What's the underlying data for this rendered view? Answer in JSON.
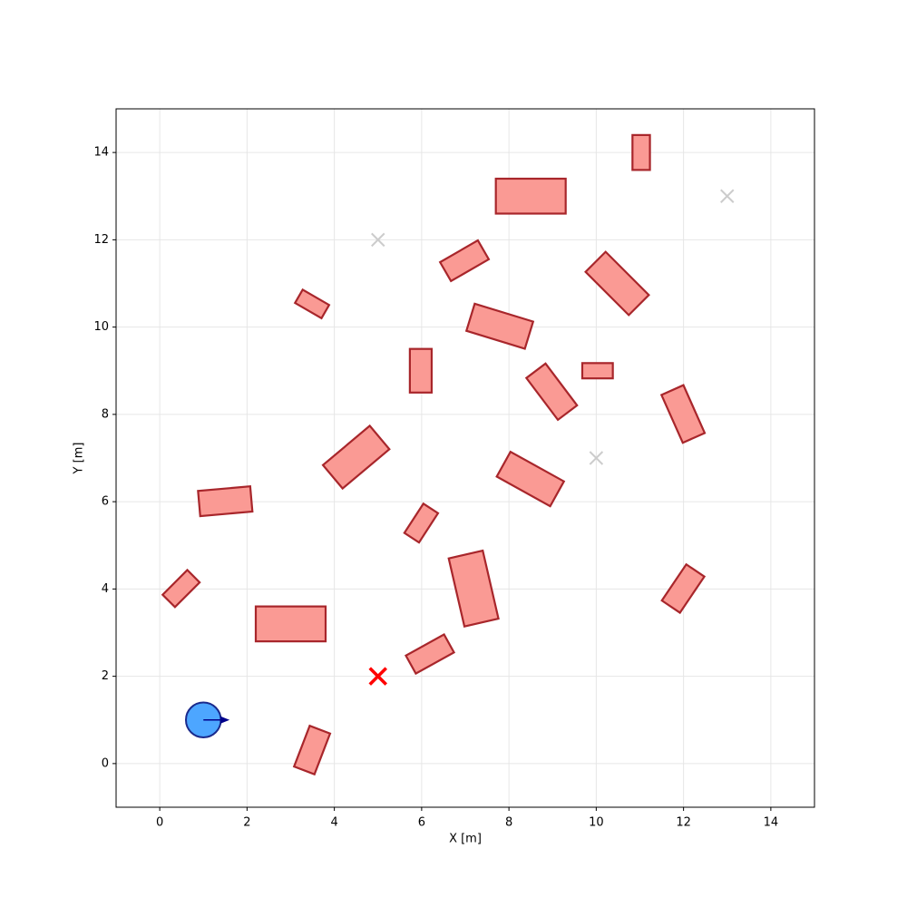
{
  "chart_data": {
    "type": "scatter",
    "xlabel": "X [m]",
    "ylabel": "Y [m]",
    "xlim": [
      -1,
      15
    ],
    "ylim": [
      -1,
      15
    ],
    "xticks": [
      0,
      2,
      4,
      6,
      8,
      10,
      12,
      14
    ],
    "yticks": [
      0,
      2,
      4,
      6,
      8,
      10,
      12,
      14
    ],
    "grid": true,
    "obstacles": {
      "color": "#fa9a94",
      "edgecolor": "#a8262b",
      "items": [
        {
          "x": 11.03,
          "y": 14.0,
          "width": 0.4,
          "height": 0.8,
          "angle": 0
        },
        {
          "x": 8.5,
          "y": 13.0,
          "width": 1.6,
          "height": 0.8,
          "angle": 0
        },
        {
          "x": 3.0,
          "y": 3.2,
          "width": 1.6,
          "height": 0.8,
          "angle": 0
        },
        {
          "x": 5.98,
          "y": 9.0,
          "width": 0.5,
          "height": 1.0,
          "angle": 0
        },
        {
          "x": 10.03,
          "y": 9.0,
          "width": 0.7,
          "height": 0.35,
          "angle": 0
        },
        {
          "x": 6.98,
          "y": 11.52,
          "width": 1.0,
          "height": 0.5,
          "angle": 30
        },
        {
          "x": 3.49,
          "y": 10.53,
          "width": 0.7,
          "height": 0.35,
          "angle": -30
        },
        {
          "x": 10.48,
          "y": 11.0,
          "width": 1.4,
          "height": 0.65,
          "angle": -45
        },
        {
          "x": 7.79,
          "y": 10.02,
          "width": 1.4,
          "height": 0.65,
          "angle": -17
        },
        {
          "x": 8.98,
          "y": 8.52,
          "width": 1.2,
          "height": 0.55,
          "angle": -53
        },
        {
          "x": 11.99,
          "y": 8.01,
          "width": 1.2,
          "height": 0.55,
          "angle": -66
        },
        {
          "x": 4.5,
          "y": 7.02,
          "width": 1.4,
          "height": 0.7,
          "angle": 40
        },
        {
          "x": 8.49,
          "y": 6.52,
          "width": 1.4,
          "height": 0.65,
          "angle": -29
        },
        {
          "x": 1.5,
          "y": 6.01,
          "width": 1.2,
          "height": 0.58,
          "angle": 5
        },
        {
          "x": 5.99,
          "y": 5.51,
          "width": 0.8,
          "height": 0.4,
          "angle": 57
        },
        {
          "x": 7.19,
          "y": 4.01,
          "width": 1.6,
          "height": 0.8,
          "angle": -77
        },
        {
          "x": 0.49,
          "y": 4.01,
          "width": 0.8,
          "height": 0.4,
          "angle": 45
        },
        {
          "x": 11.99,
          "y": 4.01,
          "width": 1.0,
          "height": 0.5,
          "angle": 56
        },
        {
          "x": 6.19,
          "y": 2.51,
          "width": 1.0,
          "height": 0.47,
          "angle": 29
        },
        {
          "x": 3.49,
          "y": 0.31,
          "width": 1.0,
          "height": 0.5,
          "angle": 69
        }
      ]
    },
    "waypoints": {
      "x": [
        5,
        10,
        13
      ],
      "y": [
        12,
        7,
        13
      ],
      "color": "#cccccc"
    },
    "goal": {
      "x": 5,
      "y": 2,
      "color": "#ff0000"
    },
    "robot": {
      "x": 1,
      "y": 1,
      "radius": 0.4,
      "heading": 0,
      "arrow_length": 0.6,
      "color": "#4da6ff",
      "edgecolor": "#1a2a8c",
      "arrow_color": "#00008b"
    }
  }
}
